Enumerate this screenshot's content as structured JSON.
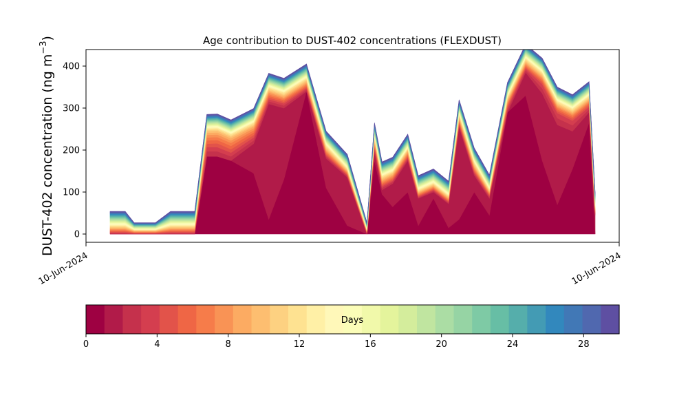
{
  "chart_data": {
    "type": "area",
    "title": "Age contribution to DUST-402 concentrations (FLEXDUST)",
    "ylabel": "DUST-402 concentration (ng m",
    "ylabel_sup": "−3",
    "ylabel_close": ")",
    "xlabel": "",
    "x_tick_labels": [
      "10-Jun-2024",
      "10-Jun-2024"
    ],
    "ylim": [
      -20,
      440
    ],
    "yticks": [
      0,
      100,
      200,
      300,
      400
    ],
    "stacked": true,
    "colormap": "Spectral",
    "colorbar": {
      "label": "Days",
      "min": 0,
      "max": 30,
      "ticks": [
        0,
        4,
        8,
        12,
        16,
        20,
        24,
        28
      ],
      "colors": [
        "#9e0142",
        "#b11b49",
        "#c5314c",
        "#d43e4f",
        "#e2534a",
        "#ef6645",
        "#f67c4a",
        "#f99355",
        "#fcab62",
        "#fdbe70",
        "#fdd181",
        "#fee291",
        "#fff0a6",
        "#fff8b9",
        "#fbfdb8",
        "#f1f9aa",
        "#e4f49c",
        "#d4ed9c",
        "#c0e5a0",
        "#abdda4",
        "#96d4a4",
        "#7ecaa5",
        "#67bea5",
        "#55aeab",
        "#439bb4",
        "#3288bd",
        "#4178b6",
        "#5068af",
        "#5e4fa2"
      ]
    },
    "x": [
      0.0,
      0.06,
      0.1,
      0.16,
      0.22,
      0.3,
      0.4,
      0.5,
      0.56,
      0.64,
      0.71,
      0.8,
      0.95,
      1.05,
      1.15,
      1.3,
      1.43,
      1.57,
      1.7,
      1.75,
      1.8,
      1.87,
      1.97,
      2.04,
      2.14,
      2.24,
      2.31,
      2.41,
      2.51,
      2.63,
      2.75,
      2.86,
      2.96,
      3.06,
      3.17,
      3.21
    ],
    "series": [
      {
        "values": [
          0,
          0,
          0,
          0,
          0,
          0,
          0,
          0,
          0,
          185,
          185,
          175,
          145,
          35,
          130,
          340,
          110,
          20,
          0,
          175,
          95,
          65,
          100,
          20,
          85,
          15,
          35,
          100,
          45,
          290,
          330,
          175,
          70,
          155,
          265,
          0
        ]
      },
      {
        "values": [
          0,
          0,
          0,
          0,
          0,
          0,
          0,
          0,
          0,
          0,
          0,
          0,
          70,
          275,
          170,
          0,
          70,
          115,
          0,
          20,
          10,
          55,
          75,
          65,
          15,
          57,
          220,
          40,
          40,
          0,
          55,
          160,
          190,
          90,
          25,
          45
        ]
      },
      {
        "values": [
          2,
          2,
          2,
          1,
          1,
          1,
          2,
          2,
          2,
          12,
          12,
          10,
          8,
          6,
          6,
          4,
          4,
          3,
          1,
          6,
          5,
          4,
          4,
          2,
          3,
          2,
          4,
          4,
          3,
          6,
          5,
          12,
          16,
          14,
          7,
          2
        ]
      },
      {
        "values": [
          2,
          2,
          2,
          1,
          1,
          1,
          2,
          2,
          2,
          10,
          10,
          9,
          7,
          5,
          5,
          3,
          3,
          2,
          1,
          5,
          4,
          3,
          3,
          2,
          2,
          2,
          3,
          3,
          3,
          5,
          4,
          10,
          12,
          11,
          6,
          2
        ]
      },
      {
        "values": [
          2,
          2,
          2,
          1,
          1,
          1,
          2,
          2,
          2,
          8,
          9,
          8,
          6,
          4,
          4,
          3,
          3,
          2,
          1,
          4,
          3,
          3,
          3,
          2,
          2,
          2,
          3,
          3,
          2,
          4,
          3,
          5,
          5,
          5,
          4,
          2
        ]
      },
      {
        "values": [
          2,
          2,
          2,
          1,
          1,
          1,
          2,
          2,
          2,
          8,
          8,
          8,
          6,
          4,
          4,
          3,
          3,
          2,
          1,
          3,
          3,
          3,
          3,
          2,
          2,
          2,
          3,
          3,
          2,
          4,
          3,
          4,
          4,
          4,
          4,
          2
        ]
      },
      {
        "values": [
          2,
          2,
          2,
          1,
          1,
          1,
          2,
          2,
          2,
          7,
          7,
          7,
          5,
          4,
          3,
          3,
          3,
          2,
          1,
          3,
          3,
          3,
          3,
          2,
          2,
          2,
          3,
          3,
          2,
          3,
          3,
          4,
          4,
          4,
          3,
          2
        ]
      },
      {
        "values": [
          2,
          2,
          2,
          1,
          1,
          1,
          2,
          2,
          2,
          6,
          6,
          6,
          5,
          4,
          3,
          3,
          3,
          2,
          1,
          3,
          3,
          3,
          3,
          2,
          2,
          2,
          3,
          3,
          2,
          3,
          3,
          3,
          3,
          3,
          3,
          2
        ]
      },
      {
        "values": [
          2,
          2,
          2,
          1,
          1,
          1,
          2,
          2,
          2,
          5,
          5,
          5,
          4,
          3,
          3,
          3,
          3,
          2,
          1,
          3,
          3,
          3,
          3,
          2,
          2,
          2,
          3,
          3,
          2,
          3,
          3,
          3,
          3,
          3,
          3,
          2
        ]
      },
      {
        "values": [
          2,
          2,
          2,
          1,
          1,
          1,
          2,
          2,
          2,
          4,
          4,
          4,
          3,
          3,
          3,
          3,
          3,
          2,
          1,
          3,
          3,
          3,
          3,
          2,
          2,
          2,
          3,
          3,
          2,
          3,
          3,
          3,
          3,
          3,
          3,
          2
        ]
      },
      {
        "values": [
          2,
          2,
          2,
          1,
          1,
          1,
          2,
          2,
          2,
          3,
          3,
          3,
          3,
          3,
          3,
          3,
          3,
          2,
          1,
          3,
          3,
          2,
          2,
          2,
          2,
          2,
          3,
          3,
          2,
          3,
          3,
          3,
          3,
          3,
          3,
          2
        ]
      },
      {
        "values": [
          2,
          2,
          2,
          1,
          1,
          1,
          2,
          2,
          2,
          3,
          3,
          3,
          3,
          3,
          3,
          3,
          3,
          2,
          1,
          3,
          3,
          2,
          2,
          2,
          2,
          2,
          3,
          3,
          2,
          3,
          3,
          3,
          3,
          3,
          3,
          2
        ]
      },
      {
        "values": [
          2,
          2,
          2,
          1,
          1,
          1,
          2,
          2,
          2,
          2,
          2,
          2,
          2,
          2,
          2,
          2,
          2,
          2,
          1,
          2,
          2,
          2,
          2,
          2,
          2,
          2,
          2,
          2,
          2,
          2,
          2,
          2,
          2,
          2,
          2,
          2
        ]
      },
      {
        "values": [
          2,
          2,
          2,
          1,
          1,
          1,
          2,
          2,
          2,
          2,
          2,
          2,
          2,
          2,
          2,
          2,
          2,
          2,
          1,
          2,
          2,
          2,
          2,
          2,
          2,
          2,
          2,
          2,
          2,
          2,
          2,
          2,
          2,
          2,
          2,
          2
        ]
      },
      {
        "values": [
          2,
          2,
          2,
          1,
          1,
          1,
          2,
          2,
          2,
          2,
          2,
          2,
          2,
          2,
          2,
          2,
          2,
          2,
          1,
          2,
          2,
          2,
          2,
          2,
          2,
          2,
          2,
          2,
          2,
          2,
          2,
          2,
          2,
          2,
          2,
          2
        ]
      },
      {
        "values": [
          2,
          2,
          2,
          1,
          1,
          1,
          2,
          2,
          2,
          2,
          2,
          2,
          2,
          2,
          2,
          2,
          2,
          2,
          1,
          2,
          2,
          2,
          2,
          2,
          2,
          2,
          2,
          2,
          2,
          2,
          2,
          2,
          2,
          2,
          2,
          2
        ]
      },
      {
        "values": [
          2,
          2,
          2,
          1,
          1,
          1,
          2,
          2,
          2,
          2,
          2,
          2,
          2,
          2,
          2,
          2,
          2,
          2,
          1,
          2,
          2,
          2,
          2,
          2,
          2,
          2,
          2,
          2,
          2,
          2,
          2,
          2,
          2,
          2,
          2,
          2
        ]
      },
      {
        "values": [
          2,
          2,
          2,
          1,
          1,
          1,
          2,
          2,
          2,
          2,
          2,
          2,
          2,
          2,
          2,
          2,
          2,
          2,
          1,
          2,
          2,
          2,
          2,
          2,
          2,
          2,
          2,
          2,
          2,
          2,
          2,
          2,
          2,
          2,
          2,
          2
        ]
      },
      {
        "values": [
          2,
          2,
          2,
          1,
          1,
          1,
          2,
          2,
          2,
          2,
          2,
          2,
          2,
          2,
          2,
          2,
          2,
          2,
          1,
          2,
          2,
          2,
          2,
          2,
          2,
          2,
          2,
          2,
          2,
          2,
          2,
          2,
          2,
          2,
          2,
          2
        ]
      },
      {
        "values": [
          2,
          2,
          2,
          1,
          1,
          1,
          2,
          2,
          2,
          2,
          2,
          2,
          2,
          2,
          2,
          2,
          2,
          2,
          1,
          2,
          2,
          2,
          2,
          2,
          2,
          2,
          2,
          2,
          2,
          2,
          2,
          2,
          2,
          2,
          2,
          2
        ]
      },
      {
        "values": [
          2,
          2,
          2,
          1,
          1,
          1,
          2,
          2,
          2,
          2,
          2,
          2,
          2,
          2,
          2,
          2,
          2,
          2,
          1,
          2,
          2,
          2,
          2,
          2,
          2,
          2,
          2,
          2,
          2,
          2,
          2,
          2,
          2,
          2,
          2,
          2
        ]
      },
      {
        "values": [
          2,
          2,
          2,
          1,
          1,
          1,
          2,
          2,
          2,
          2,
          2,
          2,
          2,
          2,
          2,
          2,
          2,
          2,
          1,
          2,
          2,
          2,
          2,
          2,
          2,
          2,
          2,
          2,
          2,
          2,
          2,
          2,
          2,
          2,
          2,
          2
        ]
      },
      {
        "values": [
          2,
          2,
          2,
          1,
          1,
          1,
          2,
          2,
          2,
          2,
          2,
          2,
          2,
          2,
          2,
          2,
          2,
          2,
          1,
          2,
          2,
          2,
          2,
          2,
          2,
          2,
          2,
          2,
          2,
          2,
          2,
          2,
          2,
          2,
          2,
          2
        ]
      },
      {
        "values": [
          2,
          2,
          2,
          1,
          1,
          1,
          2,
          2,
          2,
          2,
          2,
          2,
          2,
          2,
          2,
          2,
          2,
          2,
          1,
          2,
          2,
          2,
          2,
          2,
          2,
          2,
          2,
          2,
          2,
          2,
          2,
          2,
          2,
          2,
          2,
          2
        ]
      },
      {
        "values": [
          2,
          2,
          2,
          1,
          1,
          1,
          2,
          2,
          2,
          2,
          2,
          2,
          2,
          2,
          2,
          2,
          2,
          2,
          1,
          2,
          2,
          2,
          2,
          2,
          2,
          2,
          2,
          2,
          2,
          2,
          2,
          2,
          2,
          2,
          2,
          2
        ]
      },
      {
        "values": [
          2,
          2,
          2,
          1,
          1,
          1,
          2,
          2,
          2,
          2,
          2,
          2,
          2,
          2,
          2,
          2,
          2,
          2,
          1,
          2,
          2,
          2,
          2,
          2,
          2,
          2,
          2,
          2,
          2,
          2,
          2,
          2,
          2,
          2,
          2,
          2
        ]
      },
      {
        "values": [
          2,
          2,
          2,
          1,
          1,
          1,
          2,
          2,
          2,
          2,
          2,
          2,
          2,
          2,
          2,
          2,
          2,
          2,
          1,
          2,
          2,
          2,
          2,
          2,
          2,
          2,
          2,
          2,
          2,
          2,
          2,
          2,
          2,
          2,
          2,
          2
        ]
      },
      {
        "values": [
          2,
          2,
          2,
          1,
          1,
          1,
          2,
          2,
          2,
          2,
          2,
          2,
          2,
          2,
          2,
          2,
          2,
          2,
          1,
          2,
          2,
          2,
          2,
          2,
          2,
          2,
          2,
          2,
          2,
          2,
          2,
          2,
          2,
          2,
          2,
          2
        ]
      },
      {
        "values": [
          2,
          2,
          2,
          1,
          1,
          1,
          2,
          2,
          2,
          2,
          2,
          2,
          2,
          2,
          2,
          2,
          2,
          2,
          1,
          2,
          2,
          2,
          2,
          2,
          2,
          2,
          2,
          2,
          2,
          2,
          2,
          2,
          2,
          2,
          2,
          2
        ]
      }
    ]
  }
}
